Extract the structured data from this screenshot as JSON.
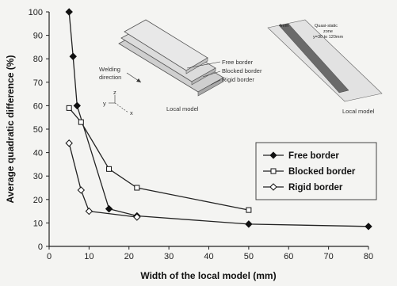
{
  "chart_data": {
    "type": "line",
    "xlabel": "Width of the local model (mm)",
    "ylabel": "Average quadratic difference (%)",
    "xlim": [
      0,
      80
    ],
    "ylim": [
      0,
      100
    ],
    "xticks": [
      0,
      10,
      20,
      30,
      40,
      50,
      60,
      70,
      80
    ],
    "yticks": [
      0,
      10,
      20,
      30,
      40,
      50,
      60,
      70,
      80,
      90,
      100
    ],
    "grid": false,
    "legend_position": "right",
    "series": [
      {
        "name": "Free border",
        "marker": "filled-diamond",
        "x": [
          5,
          6,
          7,
          15,
          22,
          50,
          80
        ],
        "y": [
          100,
          81,
          60,
          16,
          13,
          9.5,
          8.5
        ]
      },
      {
        "name": "Blocked border",
        "marker": "open-square",
        "x": [
          5,
          8,
          15,
          22,
          50
        ],
        "y": [
          59,
          53,
          33,
          25,
          15.5
        ]
      },
      {
        "name": "Rigid border",
        "marker": "open-diamond",
        "x": [
          5,
          8,
          10,
          22
        ],
        "y": [
          44,
          24,
          15,
          12.5
        ]
      }
    ],
    "annotations": {
      "inset_left": {
        "free_border": "Free border",
        "blocked_border": "Blocked border",
        "rigid_border": "Rigid border",
        "welding_line1": "Welding",
        "welding_line2": "direction",
        "local_model": "Local model",
        "axis_y": "y",
        "axis_z": "z",
        "axis_x": "x"
      },
      "inset_right": {
        "width_label": "4mm",
        "zone_line1": "Quasi-static",
        "zone_line2": "zone",
        "zone_line3": "y=30 to 120mm",
        "local_model": "Local model"
      }
    }
  }
}
